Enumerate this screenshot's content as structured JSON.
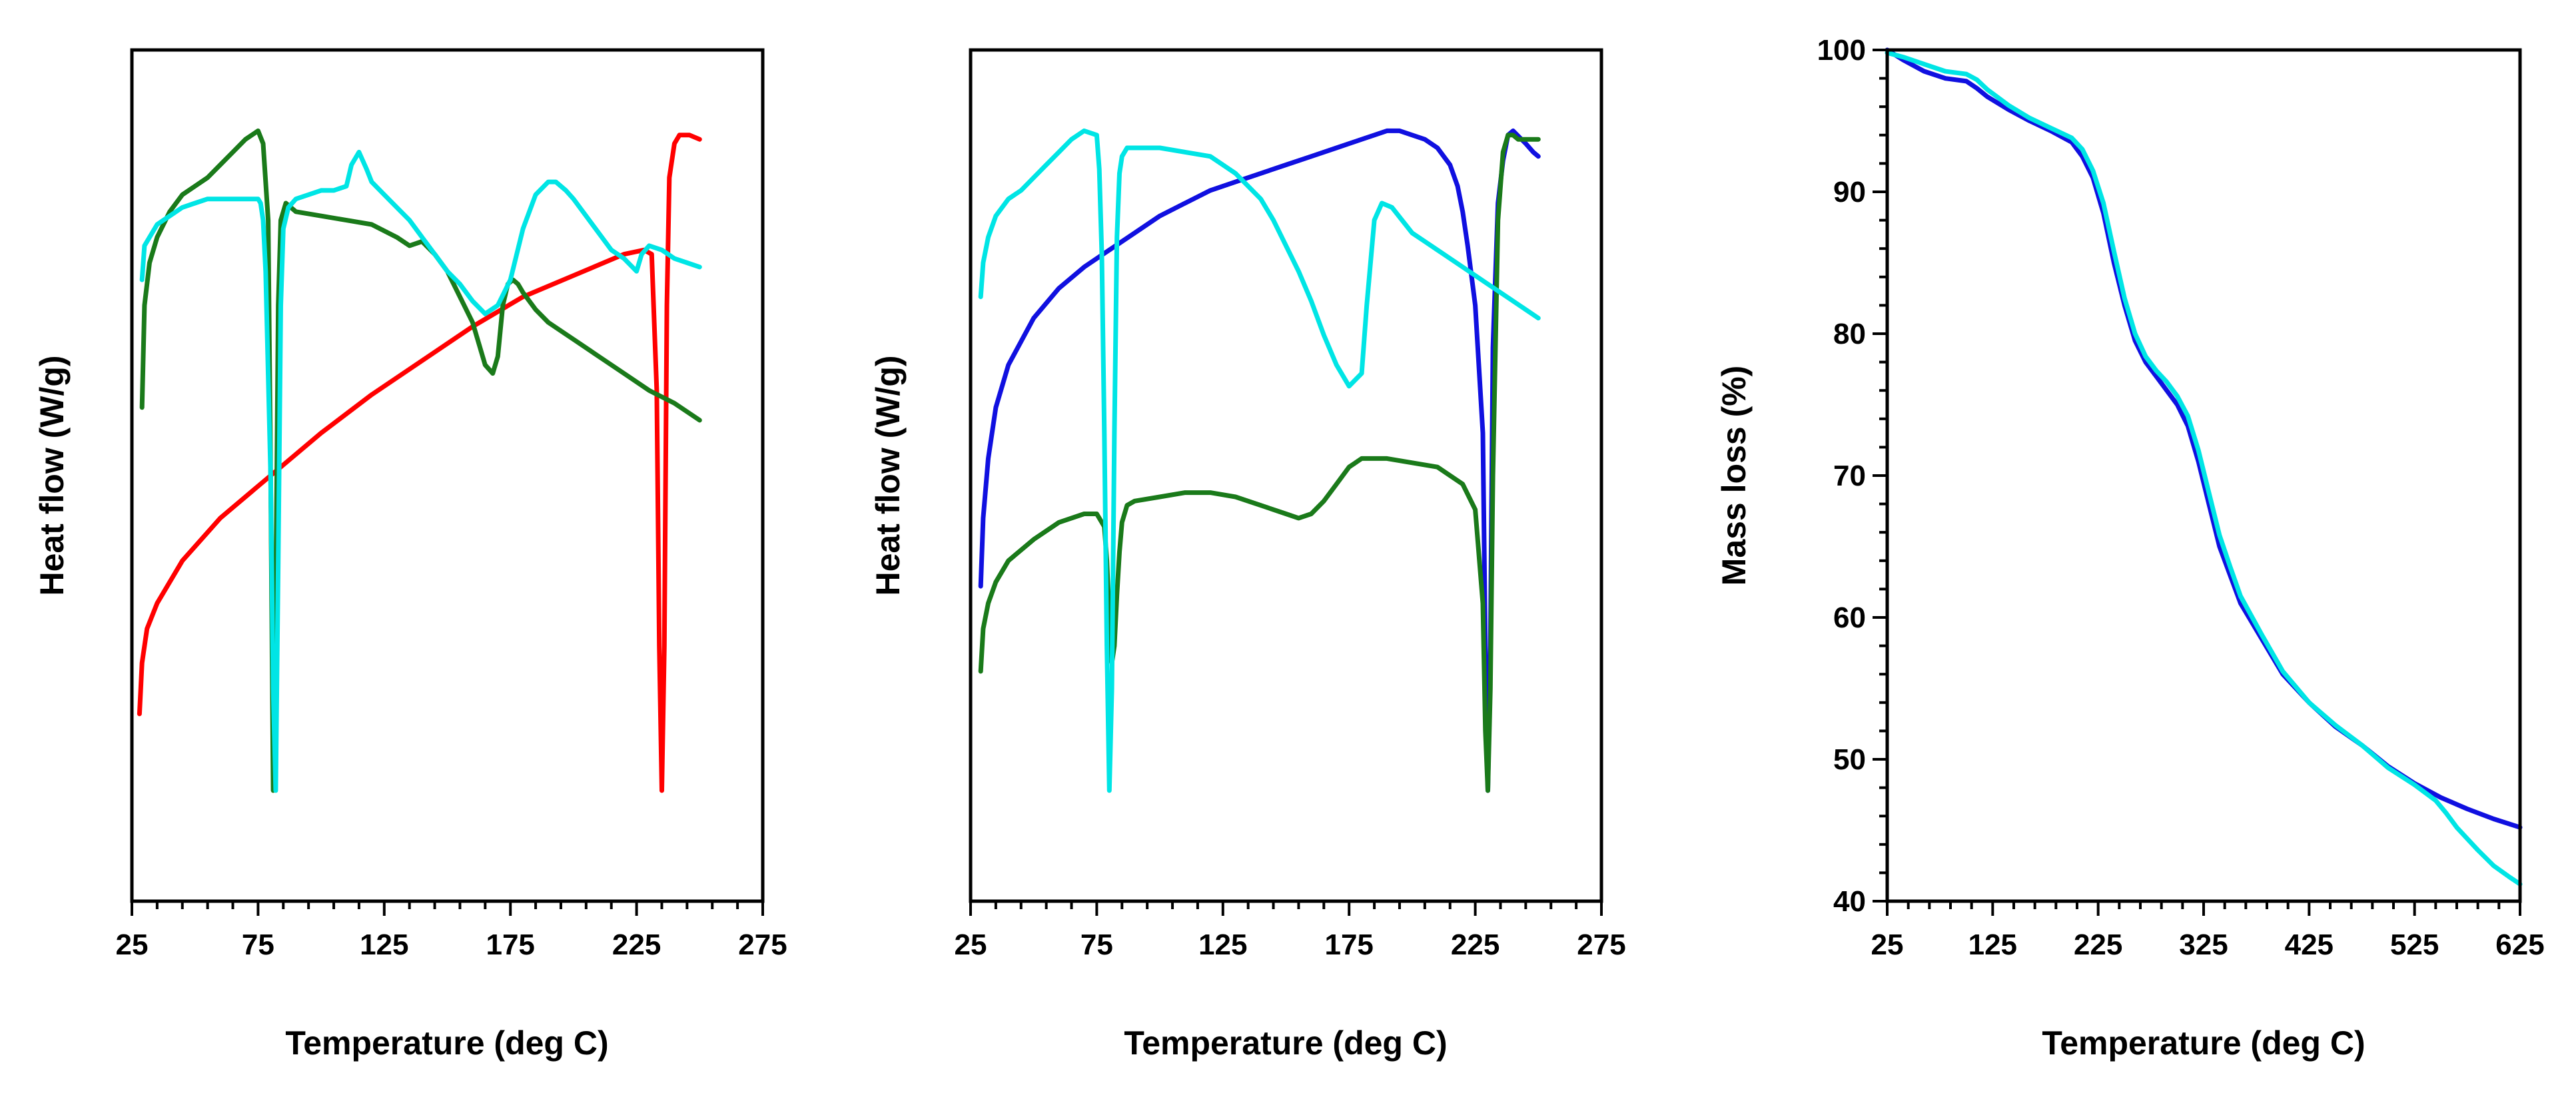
{
  "chart_data": [
    {
      "type": "line",
      "panel": "left",
      "title": "",
      "xlabel": "Temperature (deg C)",
      "ylabel": "Heat flow (W/g)",
      "xlim": [
        25,
        275
      ],
      "ylim": [
        0,
        100
      ],
      "xticks": [
        25,
        75,
        125,
        175,
        225,
        275
      ],
      "yticks_labeled": false,
      "series": [
        {
          "name": "red",
          "color": "#ff0000",
          "x": [
            28,
            29,
            31,
            35,
            45,
            60,
            80,
            100,
            120,
            140,
            160,
            180,
            200,
            220,
            228,
            231,
            233,
            234,
            235,
            236,
            237,
            238,
            240,
            242,
            246,
            250
          ],
          "y": [
            22,
            28,
            32,
            35,
            40,
            45,
            50,
            55,
            59.5,
            63.5,
            67.5,
            71,
            73.5,
            76,
            76.5,
            76,
            60,
            30,
            13,
            30,
            70,
            85,
            89,
            90,
            90,
            89.5
          ]
        },
        {
          "name": "green",
          "color": "#1a7a1a",
          "x": [
            29,
            30,
            32,
            35,
            40,
            45,
            50,
            55,
            60,
            65,
            70,
            75,
            77,
            79,
            80,
            81,
            82,
            83,
            84,
            86,
            90,
            100,
            110,
            120,
            130,
            135,
            140,
            145,
            150,
            155,
            160,
            165,
            168,
            170,
            172,
            174,
            176,
            178,
            180,
            185,
            190,
            200,
            210,
            220,
            230,
            240,
            250
          ],
          "y": [
            58,
            70,
            75,
            78,
            81,
            83,
            84,
            85,
            86.5,
            88,
            89.5,
            90.5,
            89,
            80,
            50,
            13,
            35,
            70,
            80,
            82,
            81,
            80.5,
            80,
            79.5,
            78,
            77,
            77.5,
            76,
            74,
            71,
            68,
            63,
            62,
            64,
            70,
            72.5,
            73,
            72.5,
            71.5,
            69.5,
            68,
            66,
            64,
            62,
            60,
            58.5,
            56.5
          ]
        },
        {
          "name": "cyan",
          "color": "#00e5e5",
          "x": [
            29,
            30,
            32,
            35,
            40,
            45,
            50,
            55,
            60,
            65,
            70,
            75,
            76,
            77,
            78,
            80,
            81,
            82,
            83,
            84,
            85,
            87,
            90,
            95,
            100,
            105,
            110,
            112,
            115,
            118,
            120,
            125,
            130,
            135,
            140,
            145,
            150,
            155,
            160,
            165,
            170,
            175,
            180,
            185,
            190,
            193,
            197,
            200,
            205,
            210,
            215,
            220,
            225,
            227,
            230,
            235,
            240,
            245,
            250
          ],
          "y": [
            73,
            77,
            78,
            79.5,
            80.5,
            81.5,
            82,
            82.5,
            82.5,
            82.5,
            82.5,
            82.5,
            82,
            80,
            74,
            50,
            25,
            13,
            40,
            70,
            79,
            81.5,
            82.5,
            83,
            83.5,
            83.5,
            84,
            86.5,
            88,
            86,
            84.5,
            83,
            81.5,
            80,
            78,
            76,
            74,
            72.5,
            70.5,
            69,
            70,
            73,
            79,
            83,
            84.5,
            84.5,
            83.5,
            82.5,
            80.5,
            78.5,
            76.5,
            75.5,
            74,
            76,
            77,
            76.5,
            75.5,
            75,
            74.5
          ]
        }
      ]
    },
    {
      "type": "line",
      "panel": "middle",
      "title": "",
      "xlabel": "Temperature (deg C)",
      "ylabel": "Heat flow (W/g)",
      "xlim": [
        25,
        275
      ],
      "ylim": [
        0,
        100
      ],
      "xticks": [
        25,
        75,
        125,
        175,
        225,
        275
      ],
      "yticks_labeled": false,
      "series": [
        {
          "name": "blue",
          "color": "#1010e0",
          "x": [
            29,
            30,
            32,
            35,
            40,
            50,
            60,
            70,
            80,
            90,
            100,
            110,
            120,
            130,
            140,
            150,
            160,
            170,
            180,
            185,
            190,
            195,
            200,
            205,
            210,
            215,
            218,
            220,
            222,
            225,
            228,
            229,
            230,
            231,
            232,
            234,
            236,
            238,
            240,
            245,
            248,
            250
          ],
          "y": [
            37,
            45,
            52,
            58,
            63,
            68.5,
            72,
            74.5,
            76.5,
            78.5,
            80.5,
            82,
            83.5,
            84.5,
            85.5,
            86.5,
            87.5,
            88.5,
            89.5,
            90,
            90.5,
            90.5,
            90,
            89.5,
            88.5,
            86.5,
            84,
            81,
            77,
            70,
            55,
            30,
            13,
            30,
            65,
            82,
            87,
            90,
            90.5,
            89,
            88,
            87.5
          ]
        },
        {
          "name": "green",
          "color": "#1a7a1a",
          "x": [
            29,
            30,
            32,
            35,
            40,
            50,
            60,
            70,
            75,
            78,
            79,
            80,
            81,
            82,
            83,
            84,
            85,
            87,
            90,
            100,
            110,
            120,
            130,
            140,
            150,
            155,
            160,
            165,
            170,
            175,
            180,
            185,
            190,
            200,
            210,
            220,
            225,
            228,
            229,
            230,
            231,
            232,
            234,
            236,
            238,
            240,
            242,
            245,
            250
          ],
          "y": [
            27,
            32,
            35,
            37.5,
            40,
            42.5,
            44.5,
            45.5,
            45.5,
            44,
            40,
            33,
            28,
            30,
            36,
            41,
            44.5,
            46.5,
            47,
            47.5,
            48,
            48,
            47.5,
            46.5,
            45.5,
            45,
            45.5,
            47,
            49,
            51,
            52,
            52,
            52,
            51.5,
            51,
            49,
            46,
            35,
            20,
            13,
            25,
            50,
            80,
            88,
            90,
            90,
            89.5,
            89.5,
            89.5
          ]
        },
        {
          "name": "cyan",
          "color": "#00e5e5",
          "x": [
            29,
            30,
            32,
            35,
            40,
            45,
            50,
            55,
            60,
            65,
            70,
            75,
            76,
            77,
            78,
            79,
            80,
            81,
            82,
            83,
            84,
            85,
            87,
            90,
            100,
            110,
            120,
            130,
            140,
            145,
            150,
            155,
            160,
            165,
            170,
            175,
            180,
            182,
            185,
            188,
            192,
            196,
            200,
            205,
            210,
            220,
            230,
            240,
            250
          ],
          "y": [
            71,
            75,
            78,
            80.5,
            82.5,
            83.5,
            85,
            86.5,
            88,
            89.5,
            90.5,
            90,
            86,
            76,
            55,
            30,
            13,
            25,
            55,
            78,
            85.5,
            87.5,
            88.5,
            88.5,
            88.5,
            88,
            87.5,
            85.5,
            82.5,
            80,
            77,
            74,
            70.5,
            66.5,
            63,
            60.5,
            62,
            70,
            80,
            82,
            81.5,
            80,
            78.5,
            77.5,
            76.5,
            74.5,
            72.5,
            70.5,
            68.5
          ]
        }
      ]
    },
    {
      "type": "line",
      "panel": "right",
      "title": "",
      "xlabel": "Temperature (deg C)",
      "ylabel": "Mass loss (%)",
      "xlim": [
        25,
        625
      ],
      "ylim": [
        40,
        100
      ],
      "xticks": [
        25,
        125,
        225,
        325,
        425,
        525,
        625
      ],
      "yticks": [
        40,
        50,
        60,
        70,
        80,
        90,
        100
      ],
      "series": [
        {
          "name": "blue",
          "color": "#1010e0",
          "x": [
            25,
            40,
            60,
            80,
            100,
            110,
            120,
            140,
            160,
            180,
            200,
            210,
            220,
            230,
            240,
            250,
            260,
            270,
            280,
            290,
            300,
            310,
            320,
            330,
            340,
            350,
            360,
            380,
            400,
            425,
            450,
            475,
            500,
            525,
            550,
            575,
            600,
            625
          ],
          "y": [
            100,
            99.3,
            98.5,
            98,
            97.8,
            97.3,
            96.7,
            95.8,
            95,
            94.3,
            93.5,
            92.5,
            91,
            88.5,
            85,
            82,
            79.5,
            78,
            77,
            76,
            75,
            73.5,
            71,
            68,
            65,
            63,
            61,
            58.5,
            56,
            54,
            52.3,
            51,
            49.5,
            48.3,
            47.3,
            46.5,
            45.8,
            45.2
          ]
        },
        {
          "name": "cyan",
          "color": "#00e5e5",
          "x": [
            25,
            40,
            60,
            80,
            100,
            110,
            120,
            140,
            160,
            180,
            200,
            210,
            220,
            230,
            240,
            250,
            260,
            270,
            280,
            290,
            300,
            310,
            320,
            330,
            340,
            350,
            360,
            380,
            400,
            425,
            450,
            475,
            500,
            525,
            545,
            555,
            565,
            575,
            585,
            600,
            615,
            625
          ],
          "y": [
            99.8,
            99.5,
            99,
            98.5,
            98.3,
            97.9,
            97.2,
            96.1,
            95.2,
            94.5,
            93.8,
            93,
            91.5,
            89.2,
            85.8,
            82.5,
            80,
            78.4,
            77.4,
            76.6,
            75.6,
            74.2,
            71.8,
            68.8,
            65.8,
            63.6,
            61.5,
            58.8,
            56.2,
            54,
            52.4,
            51,
            49.4,
            48.2,
            47.1,
            46.2,
            45.2,
            44.4,
            43.6,
            42.5,
            41.7,
            41.2
          ]
        }
      ]
    }
  ]
}
